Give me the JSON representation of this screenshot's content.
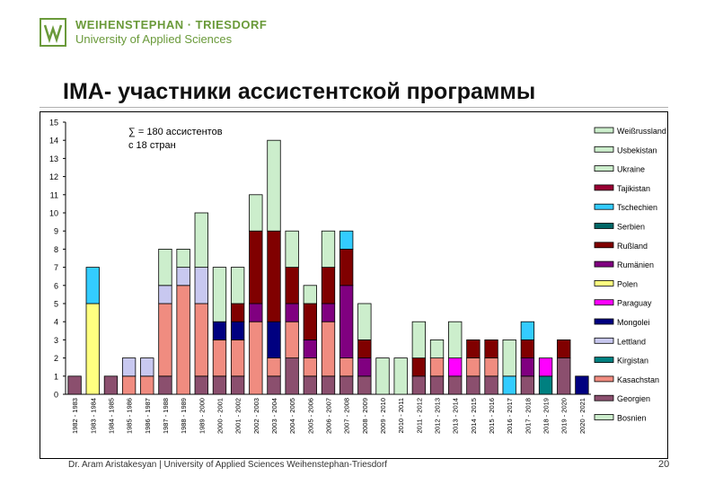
{
  "logo": {
    "line1": "WEIHENSTEPHAN · TRIESDORF",
    "line2": "University of Applied Sciences"
  },
  "slide_title": "IMA- участники ассистентской программы",
  "footer": "Dr. Aram Aristakesyan | University of Applied Sciences Weihenstephan-Triesdorf",
  "page_number": "20",
  "chart_data": {
    "type": "bar",
    "stacked": true,
    "annotation_line1": "∑ = 180 ассистентов",
    "annotation_line2": "с 18 стран",
    "ylim": [
      0,
      15
    ],
    "yticks": [
      0,
      1,
      2,
      3,
      4,
      5,
      6,
      7,
      8,
      9,
      10,
      11,
      12,
      13,
      14,
      15
    ],
    "legend_position": "right",
    "categories": [
      "1982 - 1983",
      "1983 - 1984",
      "1984 - 1985",
      "1985 - 1986",
      "1986 - 1987",
      "1987 - 1988",
      "1988 - 1989",
      "1989 - 2000",
      "2000 - 2001",
      "2001 - 2002",
      "2002 - 2003",
      "2003 - 2004",
      "2004 - 2005",
      "2005 - 2006",
      "2006 - 2007",
      "2007 - 2008",
      "2008 - 2009",
      "2009 - 2010",
      "2010 - 2011",
      "2011 - 2012",
      "2012 - 2013",
      "2013 - 2014",
      "2014 - 2015",
      "2015 - 2016",
      "2016 - 2017",
      "2017 - 2018",
      "2018 - 2019",
      "2019 - 2020",
      "2020 - 2021"
    ],
    "series": [
      {
        "name": "Georgien",
        "color": "#8B4F6E",
        "values": [
          1,
          0,
          1,
          0,
          0,
          1,
          0,
          1,
          1,
          1,
          0,
          1,
          2,
          1,
          1,
          1,
          1,
          0,
          0,
          1,
          1,
          1,
          1,
          1,
          0,
          1,
          0,
          2,
          0
        ]
      },
      {
        "name": "Kasachstan",
        "color": "#F08C80",
        "values": [
          0,
          0,
          0,
          1,
          1,
          4,
          6,
          4,
          2,
          2,
          4,
          1,
          2,
          1,
          3,
          1,
          0,
          0,
          0,
          0,
          1,
          0,
          1,
          1,
          0,
          0,
          0,
          0,
          0
        ]
      },
      {
        "name": "Kirgistan",
        "color": "#008080",
        "values": [
          0,
          0,
          0,
          0,
          0,
          0,
          0,
          0,
          0,
          0,
          0,
          0,
          0,
          0,
          0,
          0,
          0,
          0,
          0,
          0,
          0,
          0,
          0,
          0,
          0,
          0,
          1,
          0,
          0
        ]
      },
      {
        "name": "Lettland",
        "color": "#C8C8F0",
        "values": [
          0,
          0,
          0,
          1,
          1,
          1,
          1,
          2,
          0,
          0,
          0,
          0,
          0,
          0,
          0,
          0,
          0,
          0,
          0,
          0,
          0,
          0,
          0,
          0,
          0,
          0,
          0,
          0,
          0
        ]
      },
      {
        "name": "Mongolei",
        "color": "#000080",
        "values": [
          0,
          0,
          0,
          0,
          0,
          0,
          0,
          0,
          1,
          1,
          0,
          2,
          0,
          0,
          0,
          0,
          0,
          0,
          0,
          0,
          0,
          0,
          0,
          0,
          0,
          0,
          0,
          0,
          1
        ]
      },
      {
        "name": "Paraguay",
        "color": "#FF00FF",
        "values": [
          0,
          0,
          0,
          0,
          0,
          0,
          0,
          0,
          0,
          0,
          0,
          0,
          0,
          0,
          0,
          0,
          0,
          0,
          0,
          0,
          0,
          1,
          0,
          0,
          0,
          0,
          1,
          0,
          0
        ]
      },
      {
        "name": "Polen",
        "color": "#FFFF80",
        "values": [
          0,
          5,
          0,
          0,
          0,
          0,
          0,
          0,
          0,
          0,
          0,
          0,
          0,
          0,
          0,
          0,
          0,
          0,
          0,
          0,
          0,
          0,
          0,
          0,
          0,
          0,
          0,
          0,
          0
        ]
      },
      {
        "name": "Rumänien",
        "color": "#800080",
        "values": [
          0,
          0,
          0,
          0,
          0,
          0,
          0,
          0,
          0,
          0,
          1,
          0,
          1,
          1,
          1,
          4,
          1,
          0,
          0,
          0,
          0,
          0,
          0,
          0,
          0,
          1,
          0,
          0,
          0
        ]
      },
      {
        "name": "Rußland",
        "color": "#800000",
        "values": [
          0,
          0,
          0,
          0,
          0,
          0,
          0,
          0,
          0,
          1,
          4,
          5,
          2,
          2,
          2,
          2,
          1,
          0,
          0,
          1,
          0,
          0,
          1,
          1,
          0,
          1,
          0,
          1,
          0
        ]
      },
      {
        "name": "Serbien",
        "color": "#006666",
        "values": [
          0,
          0,
          0,
          0,
          0,
          0,
          0,
          0,
          0,
          0,
          0,
          0,
          0,
          0,
          0,
          0,
          0,
          0,
          0,
          0,
          0,
          0,
          0,
          0,
          0,
          0,
          0,
          0,
          0
        ]
      },
      {
        "name": "Tschechien",
        "color": "#33CCFF",
        "values": [
          0,
          2,
          0,
          0,
          0,
          0,
          0,
          0,
          0,
          0,
          0,
          0,
          0,
          0,
          0,
          1,
          0,
          0,
          0,
          0,
          0,
          0,
          0,
          0,
          1,
          1,
          0,
          0,
          0
        ]
      },
      {
        "name": "Tajikistan",
        "color": "#990033",
        "values": [
          0,
          0,
          0,
          0,
          0,
          0,
          0,
          0,
          0,
          0,
          0,
          0,
          0,
          0,
          0,
          0,
          0,
          0,
          0,
          0,
          0,
          0,
          0,
          0,
          0,
          0,
          0,
          0,
          0
        ]
      },
      {
        "name": "Ukraine",
        "color": "#CCEECC",
        "values": [
          0,
          0,
          0,
          0,
          0,
          2,
          1,
          3,
          3,
          2,
          2,
          5,
          2,
          1,
          2,
          0,
          2,
          2,
          2,
          2,
          1,
          2,
          0,
          0,
          2,
          0,
          0,
          0,
          0
        ]
      },
      {
        "name": "Usbekistan",
        "color": "#CCEECC",
        "values": [
          0,
          0,
          0,
          0,
          0,
          0,
          0,
          0,
          0,
          0,
          0,
          0,
          0,
          0,
          0,
          0,
          0,
          0,
          0,
          0,
          0,
          0,
          0,
          0,
          0,
          0,
          0,
          0,
          0
        ]
      },
      {
        "name": "Weißrussland",
        "color": "#CCEECC",
        "values": [
          0,
          0,
          0,
          0,
          0,
          0,
          0,
          0,
          0,
          0,
          0,
          0,
          0,
          0,
          0,
          0,
          0,
          0,
          0,
          0,
          0,
          0,
          0,
          0,
          0,
          0,
          0,
          0,
          0
        ]
      },
      {
        "name": "Bosnien",
        "color": "#CCEECC",
        "values": [
          0,
          0,
          0,
          0,
          0,
          0,
          0,
          0,
          0,
          0,
          0,
          0,
          0,
          0,
          0,
          0,
          0,
          0,
          0,
          0,
          0,
          0,
          0,
          0,
          0,
          0,
          0,
          0,
          0
        ]
      }
    ],
    "legend_order": [
      "Weißrussland",
      "Usbekistan",
      "Ukraine",
      "Tajikistan",
      "Tschechien",
      "Serbien",
      "Rußland",
      "Rumänien",
      "Polen",
      "Paraguay",
      "Mongolei",
      "Lettland",
      "Kirgistan",
      "Kasachstan",
      "Georgien",
      "Bosnien"
    ]
  }
}
